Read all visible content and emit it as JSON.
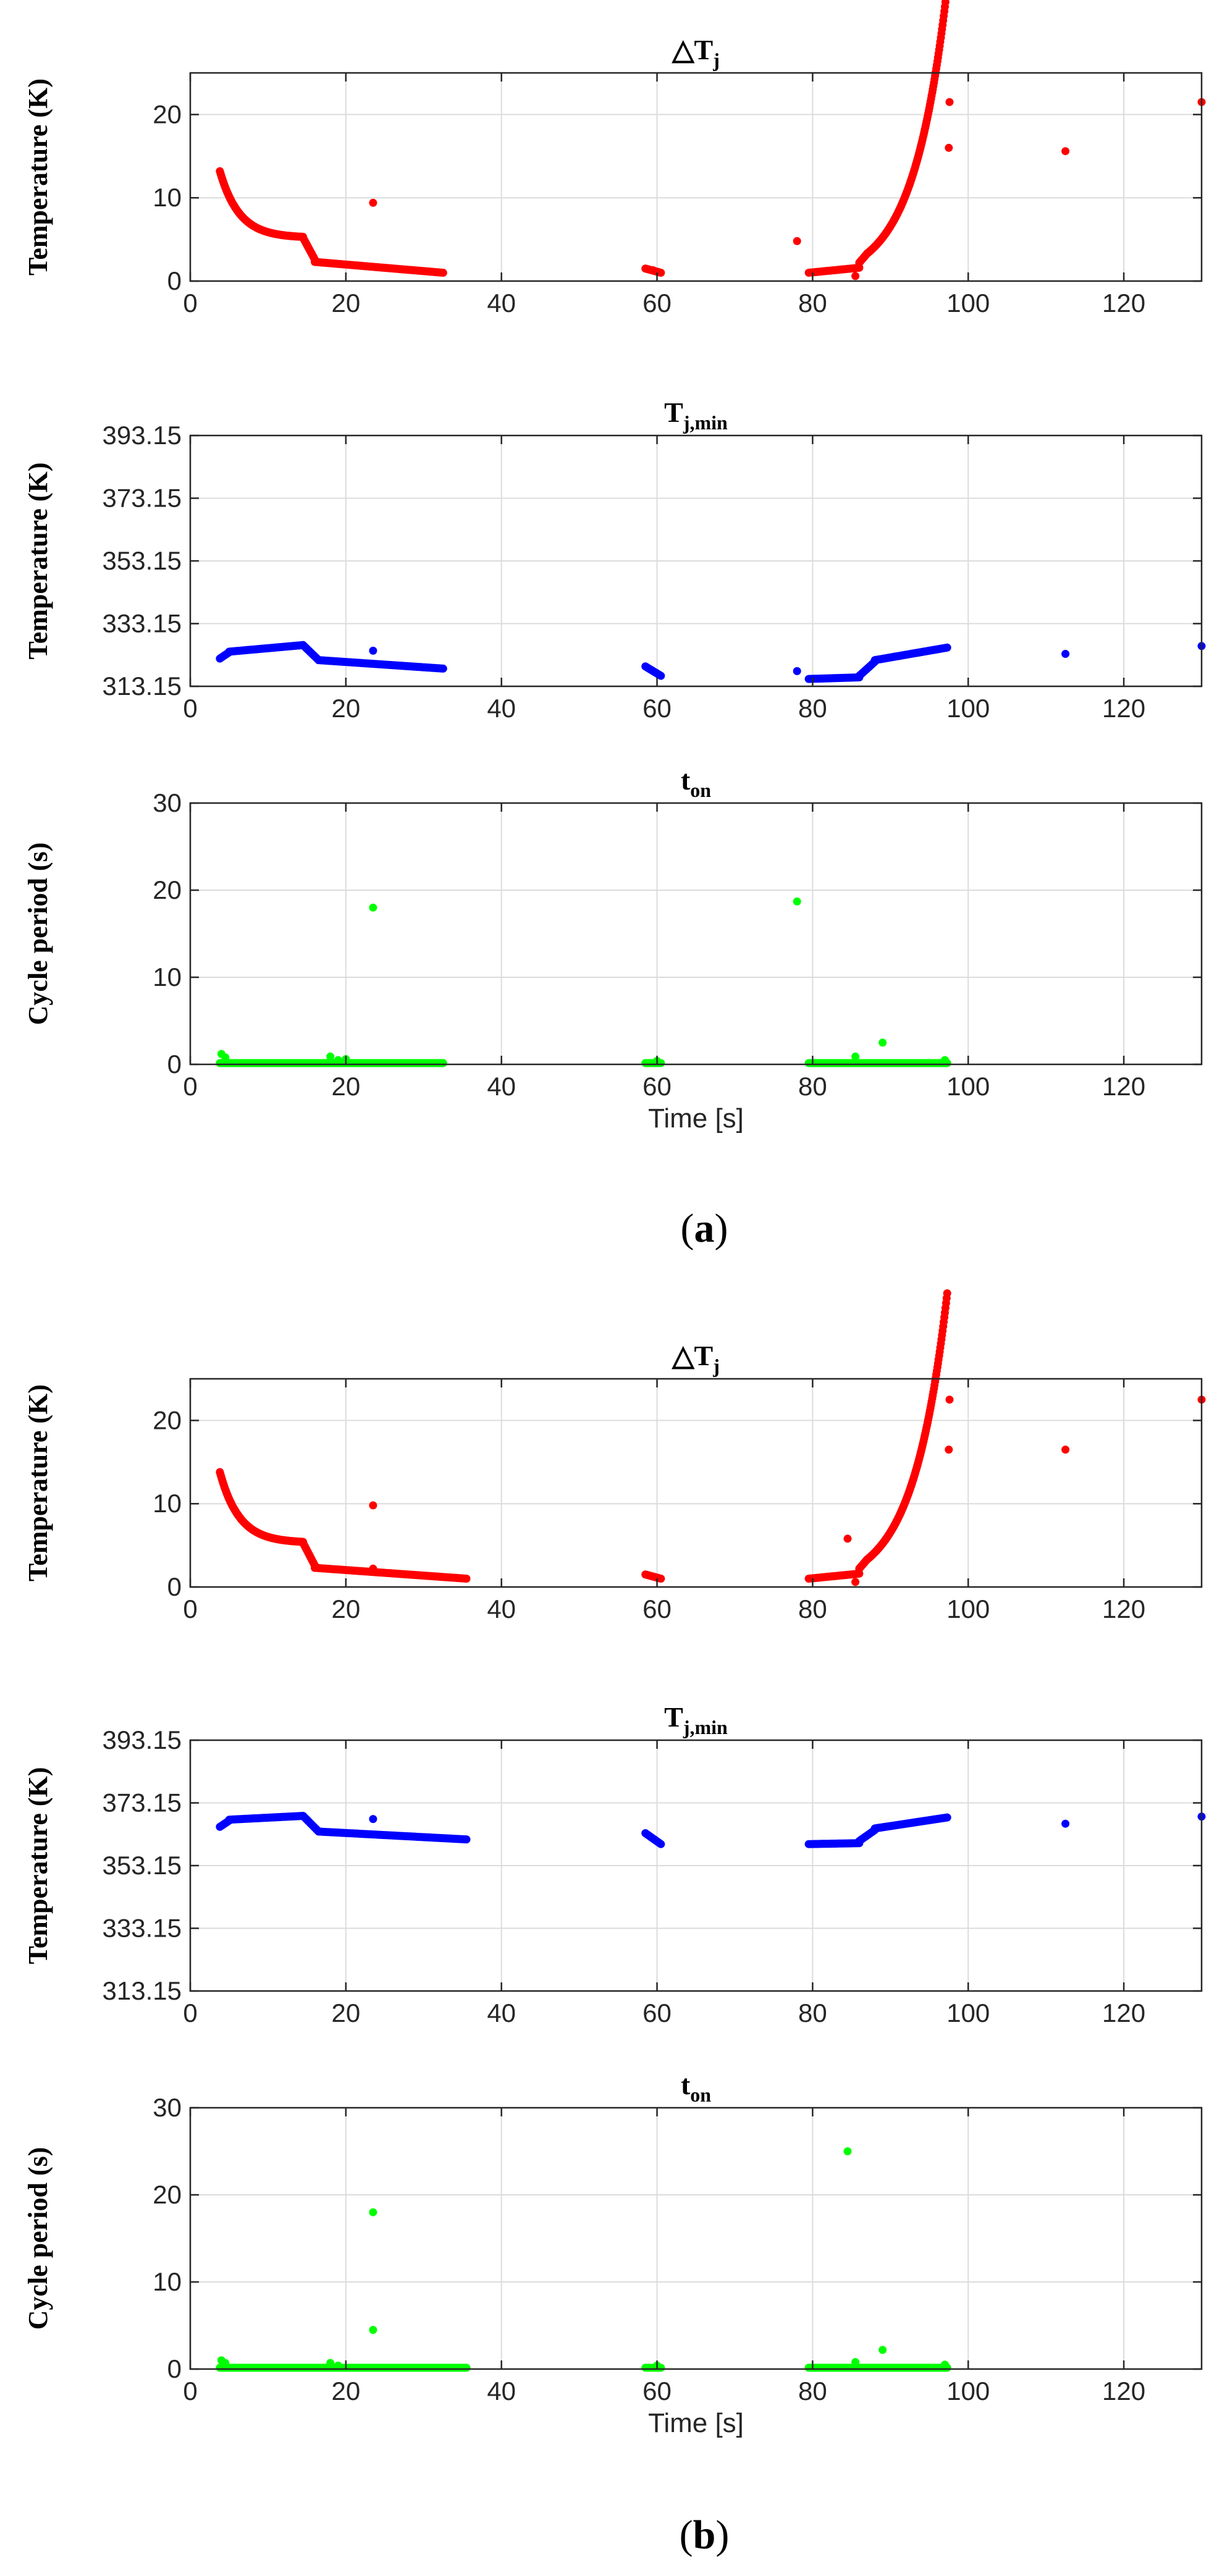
{
  "figure": {
    "panels": [
      {
        "label_open": "(",
        "label_letter": "a",
        "label_close": ")"
      },
      {
        "label_open": "(",
        "label_letter": "b",
        "label_close": ")"
      }
    ]
  },
  "chart_data": [
    {
      "id": "a-delta-tj",
      "type": "scatter",
      "title": "△T",
      "title_sub": "j",
      "xlabel": "",
      "ylabel": "Temperature (K)",
      "xlim": [
        0,
        130
      ],
      "ylim": [
        0,
        25
      ],
      "xticks": [
        0,
        20,
        40,
        60,
        80,
        100,
        120
      ],
      "yticks": [
        0,
        10,
        20
      ],
      "ytick_labels": [
        "0",
        "10",
        "20"
      ],
      "grid": true,
      "color": "#ff0000",
      "series": [
        {
          "name": "ΔTj",
          "segments": [
            {
              "fn": "decay",
              "x0": 3.8,
              "x1": 14.5,
              "y0": 13.2,
              "tau": 2.5,
              "yinf": 5.2,
              "n": 150
            },
            {
              "fn": "line",
              "x0": 14.5,
              "x1": 16,
              "y0": 5.2,
              "y1": 2.6,
              "n": 15
            },
            {
              "fn": "line",
              "x0": 16,
              "x1": 32.5,
              "y0": 2.3,
              "y1": 1.0,
              "n": 110
            },
            {
              "fn": "line",
              "x0": 58.5,
              "x1": 60.5,
              "y0": 1.5,
              "y1": 1.0,
              "n": 14
            },
            {
              "fn": "line",
              "x0": 79.5,
              "x1": 86,
              "y0": 1.0,
              "y1": 1.6,
              "n": 40
            },
            {
              "fn": "line",
              "x0": 86,
              "x1": 87,
              "y0": 2.2,
              "y1": 3.3,
              "n": 10
            },
            {
              "fn": "growth",
              "x0": 87,
              "x1": 97.3,
              "y0": 3.3,
              "k": 0.23,
              "n": 140
            }
          ],
          "points": [
            [
              23.5,
              9.4
            ],
            [
              59.5,
              1.3
            ],
            [
              78,
              4.8
            ],
            [
              85.5,
              0.6
            ],
            [
              97.5,
              16
            ],
            [
              97.6,
              21.5
            ],
            [
              112.5,
              15.6
            ],
            [
              130,
              21.5
            ]
          ]
        }
      ]
    },
    {
      "id": "a-tj-min",
      "type": "scatter",
      "title": "T",
      "title_sub": "j,min",
      "xlabel": "",
      "ylabel": "Temperature (K)",
      "xlim": [
        0,
        130
      ],
      "ylim": [
        313.15,
        393.15
      ],
      "xticks": [
        0,
        20,
        40,
        60,
        80,
        100,
        120
      ],
      "yticks": [
        313.15,
        333.15,
        353.15,
        373.15,
        393.15
      ],
      "ytick_labels": [
        "313.15",
        "333.15",
        "353.15",
        "373.15",
        "393.15"
      ],
      "grid": true,
      "color": "#0000ff",
      "series": [
        {
          "name": "Tj,min",
          "segments": [
            {
              "fn": "line",
              "x0": 3.8,
              "x1": 5,
              "y0": 322,
              "y1": 324,
              "n": 8
            },
            {
              "fn": "line",
              "x0": 5,
              "x1": 14.5,
              "y0": 324.2,
              "y1": 326.3,
              "n": 70
            },
            {
              "fn": "line",
              "x0": 14.5,
              "x1": 16.5,
              "y0": 326.3,
              "y1": 321.5,
              "n": 14
            },
            {
              "fn": "line",
              "x0": 16.5,
              "x1": 32.5,
              "y0": 321.5,
              "y1": 318.8,
              "n": 110
            },
            {
              "fn": "line",
              "x0": 58.5,
              "x1": 60.5,
              "y0": 319.5,
              "y1": 316.5,
              "n": 14
            },
            {
              "fn": "line",
              "x0": 79.5,
              "x1": 86,
              "y0": 315.5,
              "y1": 316.0,
              "n": 40
            },
            {
              "fn": "line",
              "x0": 86,
              "x1": 88,
              "y0": 316.5,
              "y1": 321.0,
              "n": 12
            },
            {
              "fn": "line",
              "x0": 88,
              "x1": 97.3,
              "y0": 321.5,
              "y1": 325.5,
              "n": 70
            }
          ],
          "points": [
            [
              23.5,
              324.5
            ],
            [
              78,
              318
            ],
            [
              112.5,
              323.5
            ],
            [
              130,
              326
            ]
          ]
        }
      ]
    },
    {
      "id": "a-ton",
      "type": "scatter",
      "title": "t",
      "title_sub": "on",
      "xlabel": "Time [s]",
      "ylabel": "Cycle period (s)",
      "xlim": [
        0,
        130
      ],
      "ylim": [
        0,
        30
      ],
      "xticks": [
        0,
        20,
        40,
        60,
        80,
        100,
        120
      ],
      "yticks": [
        0,
        10,
        20,
        30
      ],
      "ytick_labels": [
        "0",
        "10",
        "20",
        "30"
      ],
      "grid": true,
      "color": "#00ff00",
      "series": [
        {
          "name": "ton",
          "segments": [
            {
              "fn": "line",
              "x0": 3.8,
              "x1": 32.5,
              "y0": 0.15,
              "y1": 0.15,
              "n": 180
            },
            {
              "fn": "line",
              "x0": 58.5,
              "x1": 60.5,
              "y0": 0.15,
              "y1": 0.15,
              "n": 12
            },
            {
              "fn": "line",
              "x0": 79.5,
              "x1": 97.3,
              "y0": 0.15,
              "y1": 0.15,
              "n": 120
            }
          ],
          "points": [
            [
              4,
              1.2
            ],
            [
              4.5,
              0.8
            ],
            [
              18,
              0.9
            ],
            [
              19,
              0.5
            ],
            [
              20,
              0.6
            ],
            [
              23.5,
              18
            ],
            [
              78,
              18.7
            ],
            [
              85.5,
              0.9
            ],
            [
              89,
              2.5
            ],
            [
              60,
              0.4
            ],
            [
              97,
              0.5
            ]
          ]
        }
      ]
    },
    {
      "id": "b-delta-tj",
      "type": "scatter",
      "title": "△T",
      "title_sub": "j",
      "xlabel": "",
      "ylabel": "Temperature (K)",
      "xlim": [
        0,
        130
      ],
      "ylim": [
        0,
        25
      ],
      "xticks": [
        0,
        20,
        40,
        60,
        80,
        100,
        120
      ],
      "yticks": [
        0,
        10,
        20
      ],
      "ytick_labels": [
        "0",
        "10",
        "20"
      ],
      "grid": true,
      "color": "#ff0000",
      "series": [
        {
          "name": "ΔTj",
          "segments": [
            {
              "fn": "decay",
              "x0": 3.8,
              "x1": 14.5,
              "y0": 13.8,
              "tau": 2.5,
              "yinf": 5.3,
              "n": 150
            },
            {
              "fn": "line",
              "x0": 14.5,
              "x1": 16,
              "y0": 5.3,
              "y1": 2.6,
              "n": 15
            },
            {
              "fn": "line",
              "x0": 16,
              "x1": 35.5,
              "y0": 2.3,
              "y1": 1.0,
              "n": 120
            },
            {
              "fn": "line",
              "x0": 58.5,
              "x1": 60.5,
              "y0": 1.5,
              "y1": 1.0,
              "n": 14
            },
            {
              "fn": "line",
              "x0": 79.5,
              "x1": 86,
              "y0": 1.0,
              "y1": 1.6,
              "n": 40
            },
            {
              "fn": "line",
              "x0": 86,
              "x1": 87,
              "y0": 2.2,
              "y1": 3.3,
              "n": 10
            },
            {
              "fn": "growth",
              "x0": 87,
              "x1": 97.3,
              "y0": 3.3,
              "k": 0.23,
              "n": 140
            }
          ],
          "points": [
            [
              23.5,
              9.8
            ],
            [
              23.5,
              2.2
            ],
            [
              84.5,
              5.8
            ],
            [
              85.5,
              0.6
            ],
            [
              97.5,
              16.5
            ],
            [
              97.6,
              22.5
            ],
            [
              112.5,
              16.5
            ],
            [
              130,
              22.5
            ]
          ]
        }
      ]
    },
    {
      "id": "b-tj-min",
      "type": "scatter",
      "title": "T",
      "title_sub": "j,min",
      "xlabel": "",
      "ylabel": "Temperature (K)",
      "xlim": [
        0,
        130
      ],
      "ylim": [
        313.15,
        393.15
      ],
      "xticks": [
        0,
        20,
        40,
        60,
        80,
        100,
        120
      ],
      "yticks": [
        313.15,
        333.15,
        353.15,
        373.15,
        393.15
      ],
      "ytick_labels": [
        "313.15",
        "333.15",
        "353.15",
        "373.15",
        "393.15"
      ],
      "grid": true,
      "color": "#0000ff",
      "series": [
        {
          "name": "Tj,min",
          "segments": [
            {
              "fn": "line",
              "x0": 3.8,
              "x1": 5,
              "y0": 365.5,
              "y1": 367.5,
              "n": 8
            },
            {
              "fn": "line",
              "x0": 5,
              "x1": 14.5,
              "y0": 367.8,
              "y1": 369.0,
              "n": 70
            },
            {
              "fn": "line",
              "x0": 14.5,
              "x1": 16.5,
              "y0": 369.0,
              "y1": 364.0,
              "n": 14
            },
            {
              "fn": "line",
              "x0": 16.5,
              "x1": 35.5,
              "y0": 364.0,
              "y1": 361.5,
              "n": 120
            },
            {
              "fn": "line",
              "x0": 58.5,
              "x1": 60.5,
              "y0": 363.5,
              "y1": 360.0,
              "n": 16
            },
            {
              "fn": "line",
              "x0": 79.5,
              "x1": 86,
              "y0": 360.0,
              "y1": 360.3,
              "n": 40
            },
            {
              "fn": "line",
              "x0": 86,
              "x1": 88,
              "y0": 361.0,
              "y1": 364.5,
              "n": 12
            },
            {
              "fn": "line",
              "x0": 88,
              "x1": 97.3,
              "y0": 365.0,
              "y1": 368.5,
              "n": 70
            }
          ],
          "points": [
            [
              23.5,
              368.0
            ],
            [
              112.5,
              366.5
            ],
            [
              130,
              368.8
            ]
          ]
        }
      ]
    },
    {
      "id": "b-ton",
      "type": "scatter",
      "title": "t",
      "title_sub": "on",
      "xlabel": "Time [s]",
      "ylabel": "Cycle period (s)",
      "xlim": [
        0,
        130
      ],
      "ylim": [
        0,
        30
      ],
      "xticks": [
        0,
        20,
        40,
        60,
        80,
        100,
        120
      ],
      "yticks": [
        0,
        10,
        20,
        30
      ],
      "ytick_labels": [
        "0",
        "10",
        "20",
        "30"
      ],
      "grid": true,
      "color": "#00ff00",
      "series": [
        {
          "name": "ton",
          "segments": [
            {
              "fn": "line",
              "x0": 3.8,
              "x1": 35.5,
              "y0": 0.15,
              "y1": 0.15,
              "n": 190
            },
            {
              "fn": "line",
              "x0": 58.5,
              "x1": 60.5,
              "y0": 0.15,
              "y1": 0.15,
              "n": 12
            },
            {
              "fn": "line",
              "x0": 79.5,
              "x1": 97.3,
              "y0": 0.15,
              "y1": 0.15,
              "n": 120
            }
          ],
          "points": [
            [
              4,
              1.0
            ],
            [
              4.5,
              0.7
            ],
            [
              18,
              0.7
            ],
            [
              19,
              0.4
            ],
            [
              23.5,
              18
            ],
            [
              23.5,
              4.5
            ],
            [
              84.5,
              25
            ],
            [
              85.5,
              0.8
            ],
            [
              89,
              2.2
            ],
            [
              60,
              0.4
            ],
            [
              97,
              0.5
            ]
          ]
        }
      ]
    }
  ]
}
